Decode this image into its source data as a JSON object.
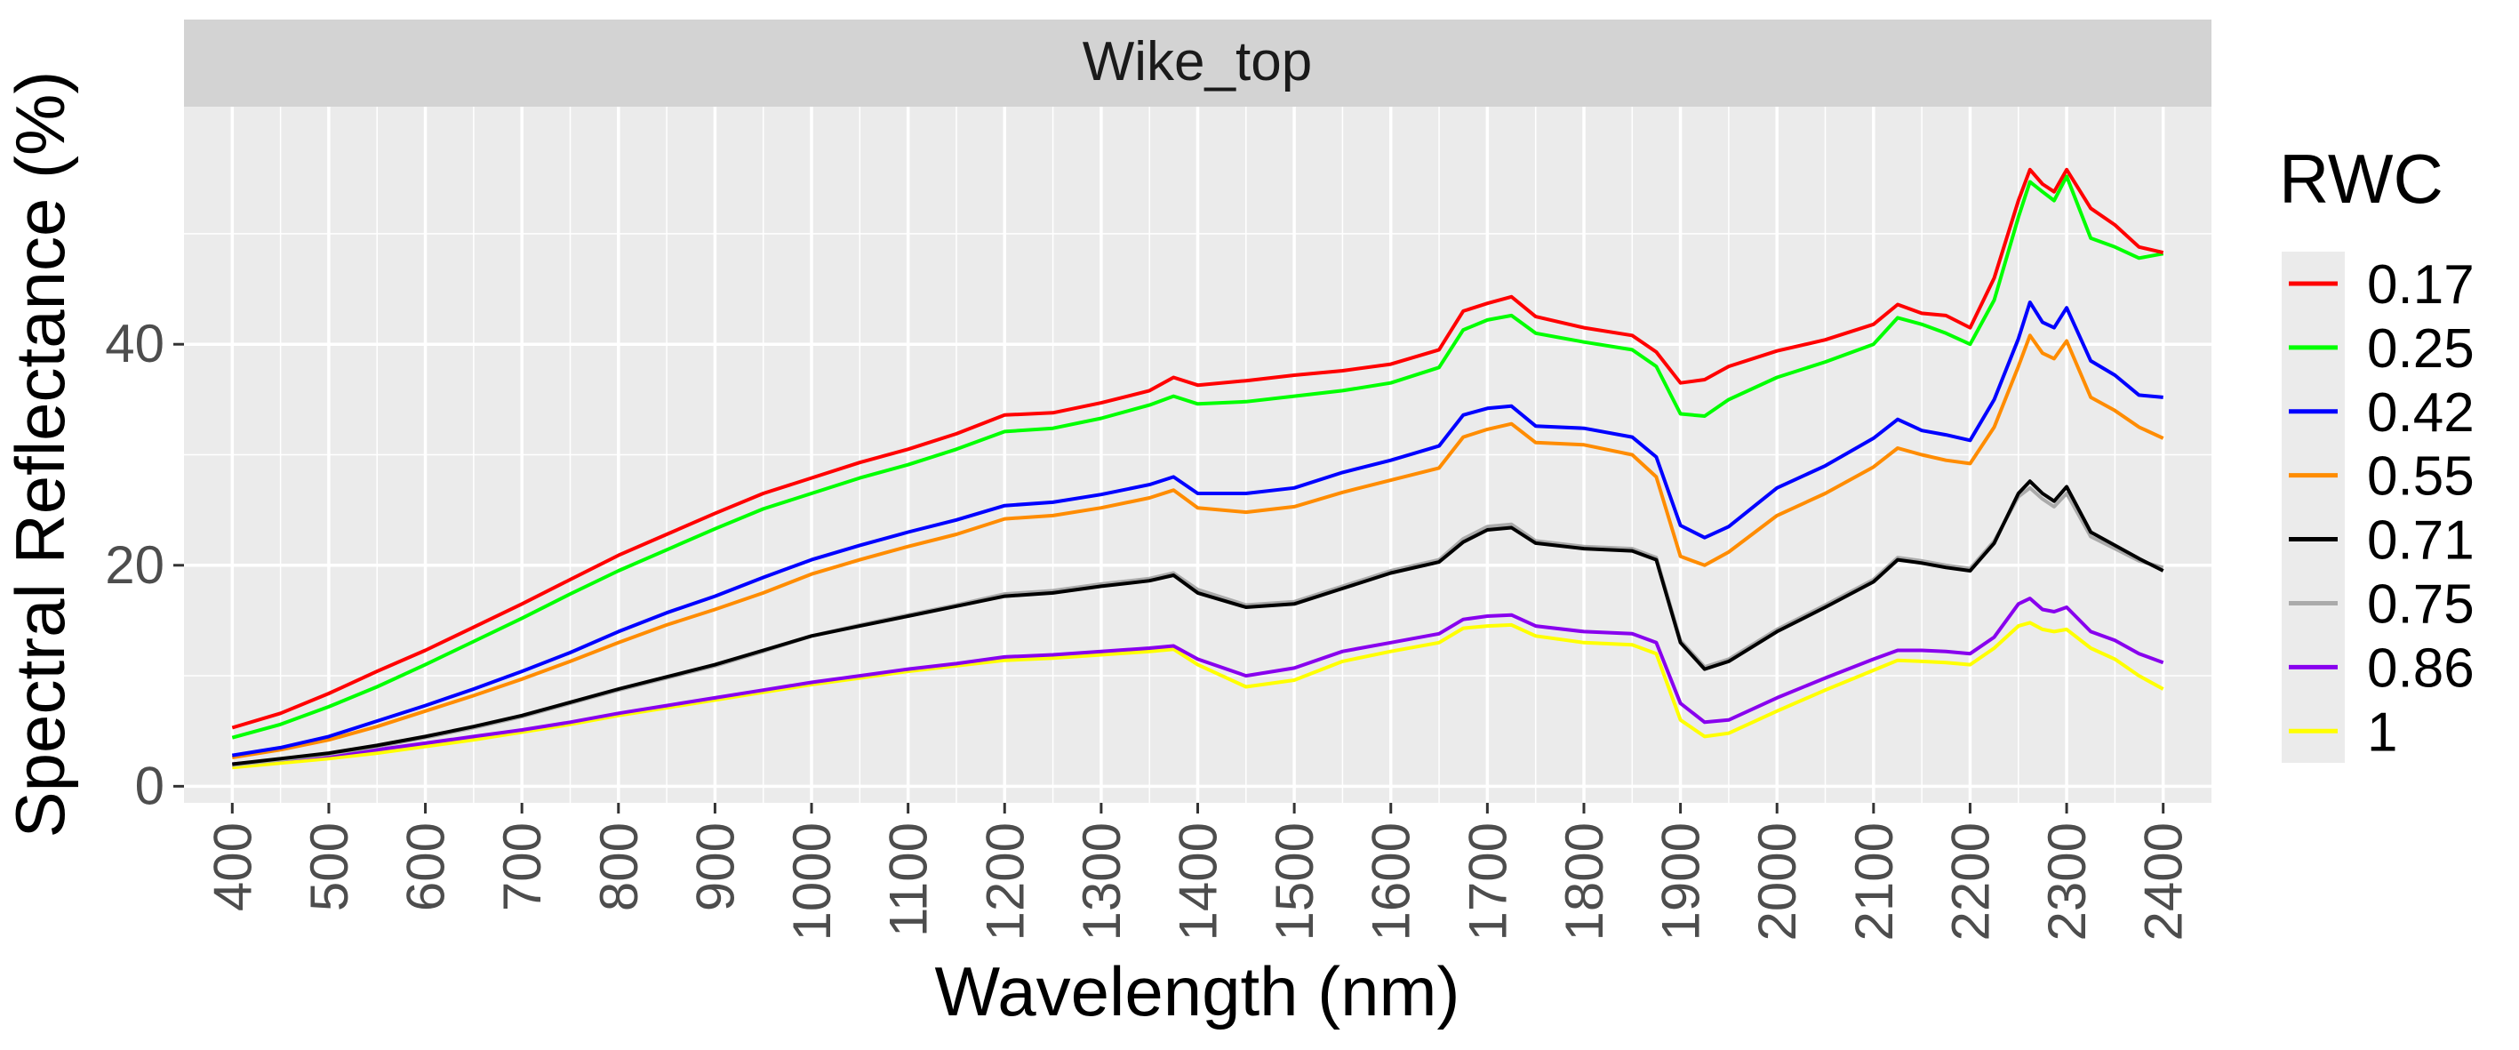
{
  "chart_data": {
    "type": "line",
    "facet_title": "Wike_top",
    "xlabel": "Wavelength (nm)",
    "ylabel": "Spectral Reflectance (%)",
    "xlim": [
      350,
      2450
    ],
    "ylim": [
      -1.5,
      61.5
    ],
    "x_ticks": [
      400,
      500,
      600,
      700,
      800,
      900,
      1000,
      1100,
      1200,
      1300,
      1400,
      1500,
      1600,
      1700,
      1800,
      1900,
      2000,
      2100,
      2200,
      2300,
      2400
    ],
    "y_ticks": [
      0,
      20,
      40
    ],
    "grid": true,
    "legend_title": "RWC",
    "legend_position": "right",
    "x": [
      400,
      450,
      500,
      550,
      600,
      650,
      700,
      750,
      800,
      850,
      900,
      950,
      1000,
      1050,
      1100,
      1150,
      1200,
      1250,
      1300,
      1350,
      1375,
      1400,
      1450,
      1500,
      1550,
      1600,
      1650,
      1675,
      1700,
      1725,
      1750,
      1800,
      1850,
      1875,
      1900,
      1925,
      1950,
      2000,
      2050,
      2100,
      2125,
      2150,
      2175,
      2200,
      2225,
      2250,
      2262,
      2275,
      2287,
      2300,
      2325,
      2350,
      2375,
      2400
    ],
    "series": [
      {
        "name": "0.17",
        "color": "#ff0000",
        "values": [
          5.3,
          6.6,
          8.4,
          10.4,
          12.3,
          14.4,
          16.5,
          18.7,
          20.9,
          22.8,
          24.7,
          26.5,
          27.9,
          29.3,
          30.5,
          31.9,
          33.6,
          33.8,
          34.7,
          35.8,
          37.0,
          36.3,
          36.7,
          37.2,
          37.6,
          38.2,
          39.5,
          43.0,
          43.7,
          44.3,
          42.5,
          41.5,
          40.8,
          39.3,
          36.5,
          36.8,
          38.0,
          39.4,
          40.4,
          41.8,
          43.6,
          42.8,
          42.6,
          41.5,
          46.0,
          53.0,
          55.8,
          54.5,
          53.8,
          55.8,
          52.3,
          50.8,
          48.8,
          48.3
        ]
      },
      {
        "name": "0.25",
        "color": "#00ff00",
        "values": [
          4.4,
          5.6,
          7.2,
          9.0,
          11.0,
          13.1,
          15.2,
          17.4,
          19.5,
          21.4,
          23.3,
          25.1,
          26.5,
          27.9,
          29.1,
          30.5,
          32.1,
          32.4,
          33.3,
          34.5,
          35.3,
          34.6,
          34.8,
          35.3,
          35.8,
          36.5,
          37.9,
          41.3,
          42.2,
          42.6,
          41.0,
          40.2,
          39.5,
          38.0,
          33.7,
          33.5,
          35.0,
          37.0,
          38.4,
          40.0,
          42.4,
          41.8,
          41.0,
          40.0,
          44.0,
          51.5,
          54.7,
          53.8,
          53.0,
          55.2,
          49.6,
          48.8,
          47.8,
          48.2
        ]
      },
      {
        "name": "0.42",
        "color": "#0000ff",
        "values": [
          2.8,
          3.5,
          4.5,
          5.9,
          7.3,
          8.8,
          10.4,
          12.1,
          14.0,
          15.7,
          17.2,
          18.9,
          20.5,
          21.8,
          23.0,
          24.1,
          25.4,
          25.7,
          26.4,
          27.3,
          28.0,
          26.5,
          26.5,
          27.0,
          28.4,
          29.5,
          30.8,
          33.6,
          34.2,
          34.4,
          32.6,
          32.4,
          31.6,
          29.8,
          23.6,
          22.5,
          23.5,
          27.0,
          29.0,
          31.5,
          33.2,
          32.2,
          31.8,
          31.3,
          35.0,
          40.5,
          43.8,
          42.0,
          41.5,
          43.3,
          38.5,
          37.2,
          35.4,
          35.2
        ]
      },
      {
        "name": "0.55",
        "color": "#ff8c00",
        "values": [
          2.6,
          3.3,
          4.2,
          5.4,
          6.8,
          8.2,
          9.7,
          11.3,
          13.0,
          14.6,
          16.0,
          17.5,
          19.2,
          20.5,
          21.7,
          22.8,
          24.2,
          24.5,
          25.2,
          26.1,
          26.8,
          25.2,
          24.8,
          25.3,
          26.6,
          27.7,
          28.8,
          31.6,
          32.3,
          32.8,
          31.1,
          30.9,
          30.0,
          28.0,
          20.8,
          20.0,
          21.2,
          24.5,
          26.5,
          28.9,
          30.6,
          30.0,
          29.5,
          29.2,
          32.5,
          38.0,
          40.8,
          39.2,
          38.7,
          40.3,
          35.2,
          34.0,
          32.5,
          31.5
        ]
      },
      {
        "name": "0.71",
        "color": "#000000",
        "values": [
          2.0,
          2.5,
          3.0,
          3.7,
          4.5,
          5.4,
          6.4,
          7.6,
          8.8,
          9.9,
          11.0,
          12.3,
          13.6,
          14.5,
          15.4,
          16.3,
          17.2,
          17.5,
          18.1,
          18.6,
          19.1,
          17.5,
          16.2,
          16.5,
          17.9,
          19.3,
          20.3,
          22.1,
          23.2,
          23.4,
          22.0,
          21.5,
          21.3,
          20.5,
          13.0,
          10.6,
          11.3,
          14.0,
          16.2,
          18.5,
          20.5,
          20.2,
          19.8,
          19.5,
          22.0,
          26.5,
          27.6,
          26.5,
          25.8,
          27.1,
          23.0,
          21.8,
          20.6,
          19.5
        ]
      },
      {
        "name": "0.75",
        "color": "#aaaaaa",
        "values": [
          1.9,
          2.4,
          2.9,
          3.6,
          4.4,
          5.3,
          6.3,
          7.5,
          8.7,
          9.8,
          10.9,
          12.2,
          13.6,
          14.6,
          15.5,
          16.4,
          17.4,
          17.7,
          18.3,
          18.8,
          19.3,
          17.8,
          16.4,
          16.7,
          18.1,
          19.5,
          20.5,
          22.4,
          23.5,
          23.7,
          22.2,
          21.7,
          21.5,
          20.7,
          13.2,
          10.8,
          11.5,
          14.2,
          16.4,
          18.7,
          20.7,
          20.4,
          20.0,
          19.7,
          22.2,
          26.2,
          27.0,
          26.0,
          25.3,
          26.5,
          22.6,
          21.5,
          20.4,
          19.8
        ]
      },
      {
        "name": "0.86",
        "color": "#8800ee",
        "values": [
          2.0,
          2.4,
          2.8,
          3.3,
          3.9,
          4.5,
          5.1,
          5.8,
          6.6,
          7.3,
          8.0,
          8.7,
          9.4,
          10.0,
          10.6,
          11.1,
          11.7,
          11.9,
          12.2,
          12.5,
          12.7,
          11.5,
          10.0,
          10.7,
          12.2,
          13.0,
          13.8,
          15.1,
          15.4,
          15.5,
          14.5,
          14.0,
          13.8,
          13.0,
          7.5,
          5.8,
          6.0,
          8.0,
          9.8,
          11.5,
          12.3,
          12.3,
          12.2,
          12.0,
          13.5,
          16.5,
          17.0,
          16.0,
          15.8,
          16.2,
          14.0,
          13.2,
          12.0,
          11.2
        ]
      },
      {
        "name": "1",
        "color": "#ffff00",
        "values": [
          1.7,
          2.1,
          2.5,
          3.0,
          3.6,
          4.2,
          4.9,
          5.6,
          6.4,
          7.1,
          7.8,
          8.5,
          9.2,
          9.8,
          10.4,
          10.9,
          11.4,
          11.6,
          11.9,
          12.2,
          12.4,
          11.0,
          9.0,
          9.6,
          11.3,
          12.2,
          13.0,
          14.3,
          14.5,
          14.6,
          13.6,
          13.0,
          12.8,
          12.0,
          6.0,
          4.5,
          4.8,
          6.8,
          8.7,
          10.5,
          11.4,
          11.3,
          11.2,
          11.0,
          12.5,
          14.5,
          14.8,
          14.2,
          14.0,
          14.2,
          12.5,
          11.5,
          10.0,
          8.8
        ]
      }
    ]
  }
}
